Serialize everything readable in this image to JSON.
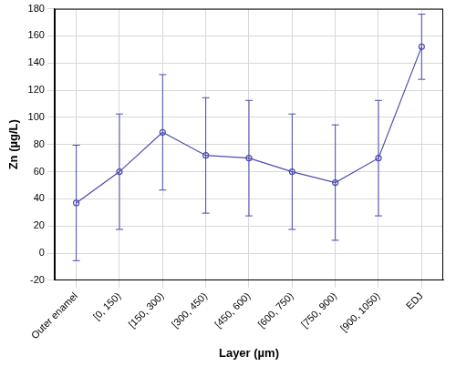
{
  "chart_data": {
    "type": "line",
    "x_label": "Layer (µm)",
    "y_label": "Zn (µg/L)",
    "categories": [
      "Outer enamel",
      "[0, 150)",
      "[150, 300)",
      "[300, 450)",
      "[450, 600)",
      "[600, 750)",
      "[750, 900)",
      "[900, 1050)",
      "EDJ"
    ],
    "values": [
      37,
      60,
      89,
      72,
      70,
      60,
      52,
      70,
      152
    ],
    "error": [
      42.5,
      42.5,
      42.5,
      42.5,
      42.5,
      42.5,
      42.5,
      42.5,
      24
    ],
    "color": "#4b4bb0",
    "marker": "open-circle",
    "ylim": [
      -20,
      180
    ],
    "yticks": [
      -20,
      0,
      20,
      40,
      60,
      80,
      100,
      120,
      140,
      160,
      180
    ],
    "grid": true
  }
}
